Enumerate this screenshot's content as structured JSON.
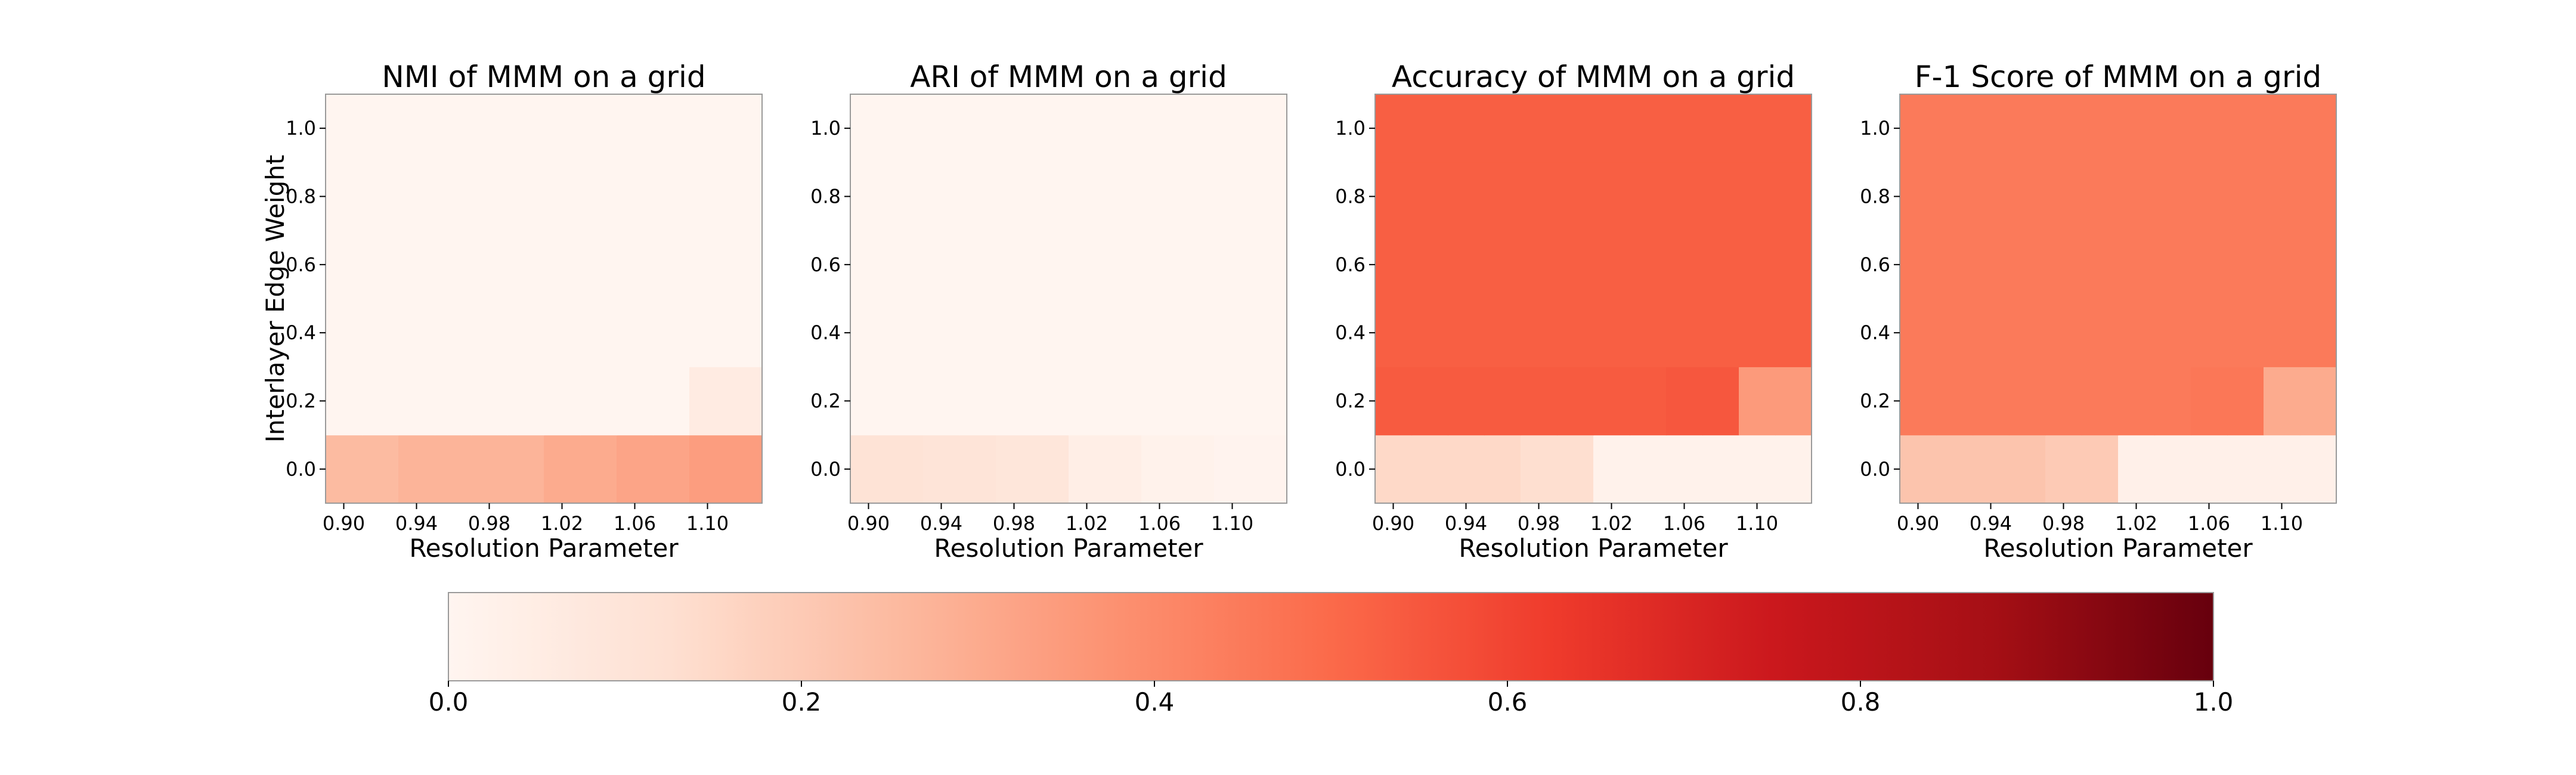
{
  "figure": {
    "colormap": "Reds",
    "colormap_stops": [
      "#fff5f0",
      "#fee0d2",
      "#fcbba1",
      "#fc9272",
      "#fb6a4a",
      "#ef3b2c",
      "#cb181d",
      "#a50f15",
      "#67000d"
    ]
  },
  "chart_data": [
    {
      "type": "heatmap",
      "title": "NMI of MMM on a grid",
      "xlabel": "Resolution Parameter",
      "ylabel": "Interlayer Edge Weight",
      "x": [
        0.9,
        0.92,
        0.94,
        0.96,
        0.98,
        1.0,
        1.02,
        1.04,
        1.06,
        1.08,
        1.1,
        1.12
      ],
      "y": [
        0.0,
        0.2,
        0.4,
        0.6,
        0.8,
        1.0
      ],
      "xticks": [
        "0.90",
        "0.94",
        "0.98",
        "1.02",
        "1.06",
        "1.10"
      ],
      "yticks": [
        "0.0",
        "0.2",
        "0.4",
        "0.6",
        "0.8",
        "1.0"
      ],
      "z": [
        [
          0.25,
          0.25,
          0.27,
          0.27,
          0.27,
          0.27,
          0.3,
          0.3,
          0.32,
          0.32,
          0.34,
          0.34
        ],
        [
          0.0,
          0.0,
          0.0,
          0.0,
          0.0,
          0.0,
          0.0,
          0.0,
          0.0,
          0.0,
          0.06,
          0.06
        ],
        [
          0.0,
          0.0,
          0.0,
          0.0,
          0.0,
          0.0,
          0.0,
          0.0,
          0.0,
          0.0,
          0.0,
          0.0
        ],
        [
          0.0,
          0.0,
          0.0,
          0.0,
          0.0,
          0.0,
          0.0,
          0.0,
          0.0,
          0.0,
          0.0,
          0.0
        ],
        [
          0.0,
          0.0,
          0.0,
          0.0,
          0.0,
          0.0,
          0.0,
          0.0,
          0.0,
          0.0,
          0.0,
          0.0
        ],
        [
          0.0,
          0.0,
          0.0,
          0.0,
          0.0,
          0.0,
          0.0,
          0.0,
          0.0,
          0.0,
          0.0,
          0.0
        ]
      ]
    },
    {
      "type": "heatmap",
      "title": "ARI of MMM on a grid",
      "xlabel": "Resolution Parameter",
      "ylabel": "",
      "x": [
        0.9,
        0.92,
        0.94,
        0.96,
        0.98,
        1.0,
        1.02,
        1.04,
        1.06,
        1.08,
        1.1,
        1.12
      ],
      "y": [
        0.0,
        0.2,
        0.4,
        0.6,
        0.8,
        1.0
      ],
      "xticks": [
        "0.90",
        "0.94",
        "0.98",
        "1.02",
        "1.06",
        "1.10"
      ],
      "yticks": [
        "0.0",
        "0.2",
        "0.4",
        "0.6",
        "0.8",
        "1.0"
      ],
      "z": [
        [
          0.11,
          0.11,
          0.1,
          0.1,
          0.09,
          0.09,
          0.04,
          0.04,
          0.02,
          0.02,
          0.01,
          0.01
        ],
        [
          0.0,
          0.0,
          0.0,
          0.0,
          0.0,
          0.0,
          0.0,
          0.0,
          0.0,
          0.0,
          0.0,
          0.0
        ],
        [
          0.0,
          0.0,
          0.0,
          0.0,
          0.0,
          0.0,
          0.0,
          0.0,
          0.0,
          0.0,
          0.0,
          0.0
        ],
        [
          0.0,
          0.0,
          0.0,
          0.0,
          0.0,
          0.0,
          0.0,
          0.0,
          0.0,
          0.0,
          0.0,
          0.0
        ],
        [
          0.0,
          0.0,
          0.0,
          0.0,
          0.0,
          0.0,
          0.0,
          0.0,
          0.0,
          0.0,
          0.0,
          0.0
        ],
        [
          0.0,
          0.0,
          0.0,
          0.0,
          0.0,
          0.0,
          0.0,
          0.0,
          0.0,
          0.0,
          0.0,
          0.0
        ]
      ]
    },
    {
      "type": "heatmap",
      "title": "Accuracy of MMM on a grid",
      "xlabel": "Resolution Parameter",
      "ylabel": "",
      "x": [
        0.9,
        0.92,
        0.94,
        0.96,
        0.98,
        1.0,
        1.02,
        1.04,
        1.06,
        1.08,
        1.1,
        1.12
      ],
      "y": [
        0.0,
        0.2,
        0.4,
        0.6,
        0.8,
        1.0
      ],
      "xticks": [
        "0.90",
        "0.94",
        "0.98",
        "1.02",
        "1.06",
        "1.10"
      ],
      "yticks": [
        "0.0",
        "0.2",
        "0.4",
        "0.6",
        "0.8",
        "1.0"
      ],
      "z": [
        [
          0.15,
          0.15,
          0.15,
          0.15,
          0.13,
          0.13,
          0.02,
          0.02,
          0.02,
          0.02,
          0.02,
          0.02
        ],
        [
          0.54,
          0.54,
          0.54,
          0.54,
          0.54,
          0.54,
          0.54,
          0.54,
          0.55,
          0.55,
          0.35,
          0.35
        ],
        [
          0.53,
          0.53,
          0.53,
          0.53,
          0.53,
          0.53,
          0.53,
          0.53,
          0.53,
          0.53,
          0.53,
          0.53
        ],
        [
          0.53,
          0.53,
          0.53,
          0.53,
          0.53,
          0.53,
          0.53,
          0.53,
          0.53,
          0.53,
          0.53,
          0.53
        ],
        [
          0.53,
          0.53,
          0.53,
          0.53,
          0.53,
          0.53,
          0.53,
          0.53,
          0.53,
          0.53,
          0.53,
          0.53
        ],
        [
          0.53,
          0.53,
          0.53,
          0.53,
          0.53,
          0.53,
          0.53,
          0.53,
          0.53,
          0.53,
          0.53,
          0.53
        ]
      ]
    },
    {
      "type": "heatmap",
      "title": "F-1 Score of MMM on a grid",
      "xlabel": "Resolution Parameter",
      "ylabel": "",
      "x": [
        0.9,
        0.92,
        0.94,
        0.96,
        0.98,
        1.0,
        1.02,
        1.04,
        1.06,
        1.08,
        1.1,
        1.12
      ],
      "y": [
        0.0,
        0.2,
        0.4,
        0.6,
        0.8,
        1.0
      ],
      "xticks": [
        "0.90",
        "0.94",
        "0.98",
        "1.02",
        "1.06",
        "1.10"
      ],
      "yticks": [
        "0.0",
        "0.2",
        "0.4",
        "0.6",
        "0.8",
        "1.0"
      ],
      "z": [
        [
          0.22,
          0.22,
          0.22,
          0.22,
          0.2,
          0.2,
          0.03,
          0.03,
          0.03,
          0.03,
          0.03,
          0.03
        ],
        [
          0.45,
          0.45,
          0.45,
          0.45,
          0.45,
          0.45,
          0.45,
          0.45,
          0.46,
          0.46,
          0.3,
          0.3
        ],
        [
          0.45,
          0.45,
          0.45,
          0.45,
          0.45,
          0.45,
          0.45,
          0.45,
          0.45,
          0.45,
          0.45,
          0.45
        ],
        [
          0.45,
          0.45,
          0.45,
          0.45,
          0.45,
          0.45,
          0.45,
          0.45,
          0.45,
          0.45,
          0.45,
          0.45
        ],
        [
          0.45,
          0.45,
          0.45,
          0.45,
          0.45,
          0.45,
          0.45,
          0.45,
          0.45,
          0.45,
          0.45,
          0.45
        ],
        [
          0.45,
          0.45,
          0.45,
          0.45,
          0.45,
          0.45,
          0.45,
          0.45,
          0.45,
          0.45,
          0.45,
          0.45
        ]
      ]
    }
  ],
  "colorbar": {
    "range": [
      0.0,
      1.0
    ],
    "ticks": [
      "0.0",
      "0.2",
      "0.4",
      "0.6",
      "0.8",
      "1.0"
    ]
  }
}
